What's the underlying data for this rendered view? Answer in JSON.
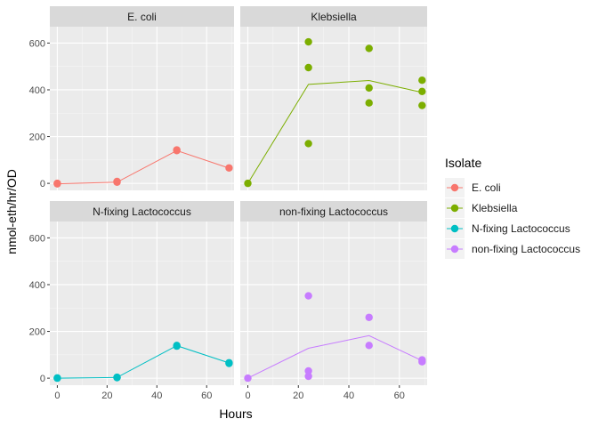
{
  "chart_data": {
    "type": "scatter",
    "layout": "facet-grid-2x2",
    "xlabel": "Hours",
    "ylabel": "nmol-eth/hr/OD",
    "xlim": [
      -3,
      71
    ],
    "ylim": [
      -30,
      670
    ],
    "x_ticks": [
      0,
      20,
      40,
      60
    ],
    "y_ticks": [
      0,
      200,
      400,
      600
    ],
    "grid": true,
    "legend": {
      "title": "Isolate",
      "placement": "right",
      "entries": [
        "E. coli",
        "Klebsiella",
        "N-fixing Lactococcus",
        "non-fixing Lactococcus"
      ]
    },
    "facets": [
      {
        "title": "E. coli",
        "color": "#F8766D",
        "points": [
          [
            0,
            -2
          ],
          [
            0,
            0
          ],
          [
            24,
            8
          ],
          [
            24,
            5
          ],
          [
            48,
            140
          ],
          [
            48,
            143
          ],
          [
            69,
            66
          ]
        ],
        "line": [
          [
            0,
            -2
          ],
          [
            24,
            5
          ],
          [
            48,
            140
          ],
          [
            69,
            65
          ]
        ]
      },
      {
        "title": "Klebsiella",
        "color": "#7CAE00",
        "points": [
          [
            0,
            0
          ],
          [
            24,
            605
          ],
          [
            24,
            495
          ],
          [
            24,
            170
          ],
          [
            48,
            577
          ],
          [
            48,
            408
          ],
          [
            48,
            344
          ],
          [
            69,
            441
          ],
          [
            69,
            393
          ],
          [
            69,
            333
          ]
        ],
        "line": [
          [
            0,
            0
          ],
          [
            24,
            423
          ],
          [
            48,
            440
          ],
          [
            69,
            389
          ]
        ]
      },
      {
        "title": "N-fixing Lactococcus",
        "color": "#00BFC4",
        "points": [
          [
            0,
            0
          ],
          [
            0,
            1
          ],
          [
            24,
            4
          ],
          [
            24,
            2
          ],
          [
            48,
            140
          ],
          [
            48,
            137
          ],
          [
            69,
            66
          ],
          [
            69,
            63
          ]
        ],
        "line": [
          [
            0,
            0
          ],
          [
            24,
            3
          ],
          [
            48,
            139
          ],
          [
            69,
            65
          ]
        ]
      },
      {
        "title": "non-fixing Lactococcus",
        "color": "#C77CFF",
        "points": [
          [
            0,
            0
          ],
          [
            24,
            352
          ],
          [
            24,
            31
          ],
          [
            24,
            8
          ],
          [
            48,
            260
          ],
          [
            48,
            140
          ],
          [
            69,
            78
          ],
          [
            69,
            70
          ]
        ],
        "line": [
          [
            0,
            0
          ],
          [
            24,
            128
          ],
          [
            48,
            182
          ],
          [
            69,
            75
          ]
        ]
      }
    ]
  }
}
